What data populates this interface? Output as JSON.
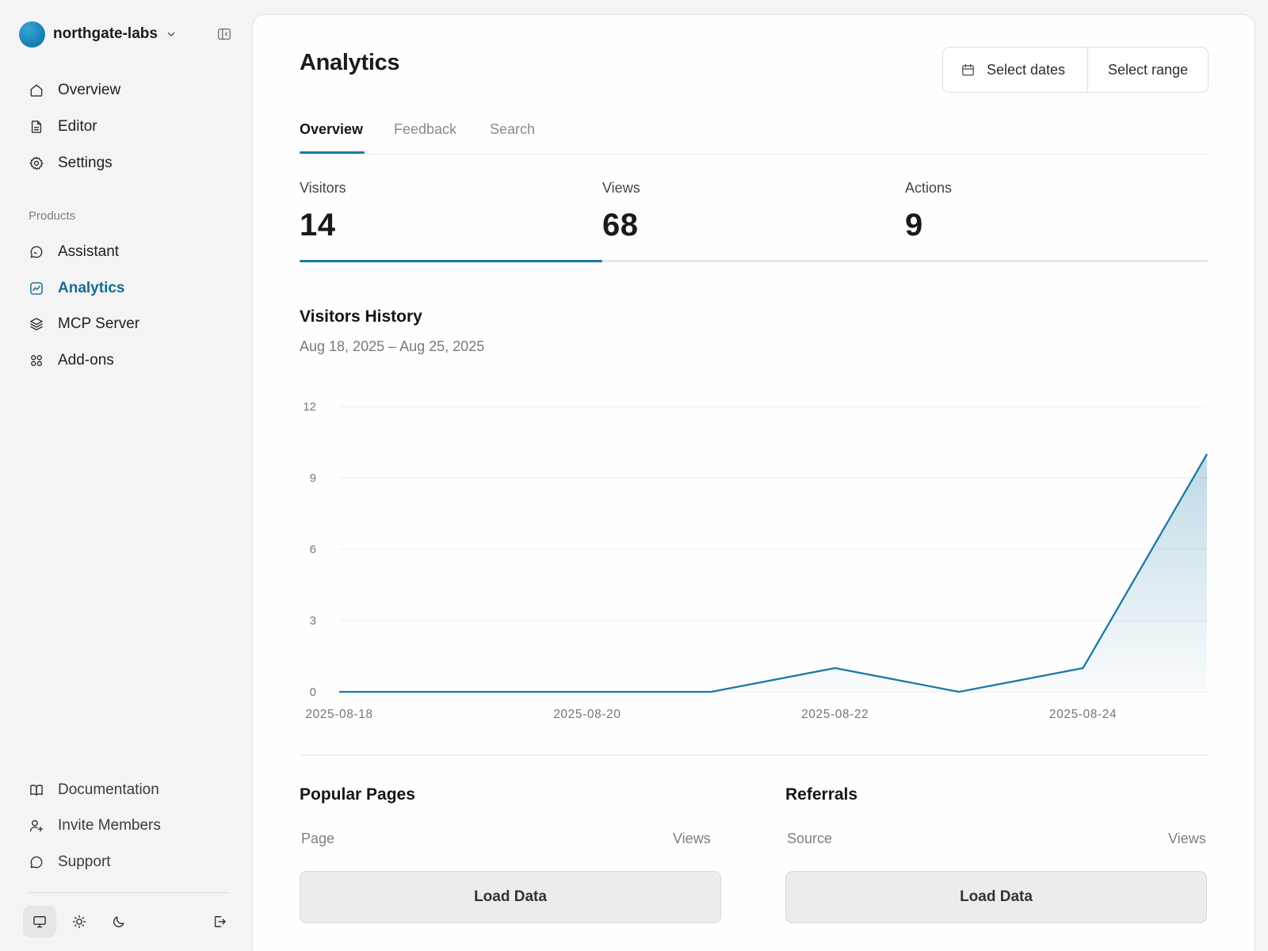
{
  "sidebar": {
    "org_name": "northgate-labs",
    "nav": [
      {
        "label": "Overview",
        "icon": "home-icon"
      },
      {
        "label": "Editor",
        "icon": "document-icon"
      },
      {
        "label": "Settings",
        "icon": "gear-icon"
      }
    ],
    "products_title": "Products",
    "products": [
      {
        "label": "Assistant",
        "icon": "chat-icon"
      },
      {
        "label": "Analytics",
        "icon": "chart-icon",
        "active": true
      },
      {
        "label": "MCP Server",
        "icon": "layers-icon"
      },
      {
        "label": "Add-ons",
        "icon": "grid-icon"
      }
    ],
    "footer": [
      {
        "label": "Documentation",
        "icon": "book-icon"
      },
      {
        "label": "Invite Members",
        "icon": "user-plus-icon"
      },
      {
        "label": "Support",
        "icon": "chat-icon"
      }
    ],
    "theme": {
      "selected": "system"
    }
  },
  "header": {
    "title": "Analytics",
    "select_dates": "Select dates",
    "select_range": "Select range"
  },
  "tabs": [
    {
      "label": "Overview",
      "active": true
    },
    {
      "label": "Feedback"
    },
    {
      "label": "Search"
    }
  ],
  "stats": [
    {
      "label": "Visitors",
      "value": "14"
    },
    {
      "label": "Views",
      "value": "68"
    },
    {
      "label": "Actions",
      "value": "9"
    }
  ],
  "chart": {
    "title": "Visitors History",
    "subtitle": "Aug 18, 2025 – Aug 25, 2025"
  },
  "chart_data": {
    "type": "area",
    "x": [
      "2025-08-18",
      "2025-08-19",
      "2025-08-20",
      "2025-08-21",
      "2025-08-22",
      "2025-08-23",
      "2025-08-24",
      "2025-08-25"
    ],
    "x_tick_labels": [
      "2025-08-18",
      "2025-08-20",
      "2025-08-22",
      "2025-08-24"
    ],
    "series": [
      {
        "values": [
          0,
          0,
          0,
          0,
          1,
          0,
          1,
          10
        ]
      }
    ],
    "y_ticks": [
      "0",
      "3",
      "6",
      "9",
      "12"
    ],
    "ylim": [
      0,
      12
    ],
    "grid": true,
    "legend": "none",
    "line_color": "#1b7aa5"
  },
  "popular_pages": {
    "title": "Popular Pages",
    "col_page": "Page",
    "col_views": "Views",
    "button": "Load Data"
  },
  "referrals": {
    "title": "Referrals",
    "col_source": "Source",
    "col_views": "Views",
    "button": "Load Data"
  },
  "colors": {
    "accent": "#1b7aa5",
    "active_nav": "#156d92",
    "background": "#f4f4f4"
  }
}
